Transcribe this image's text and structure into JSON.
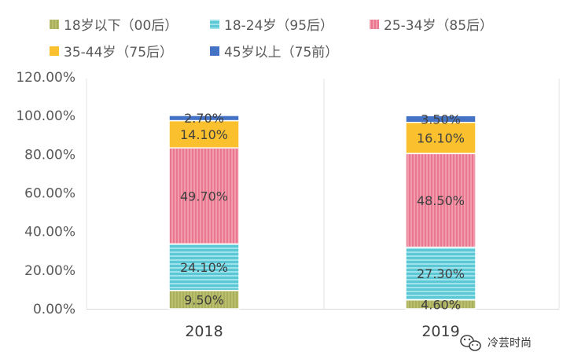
{
  "chart_data": {
    "type": "bar",
    "stacked": true,
    "title": "",
    "xlabel": "",
    "ylabel": "",
    "categories": [
      "2018",
      "2019"
    ],
    "ylim": [
      0,
      120
    ],
    "yticks": [
      0,
      20,
      40,
      60,
      80,
      100,
      120
    ],
    "ytick_labels": [
      "0.00%",
      "20.00%",
      "40.00%",
      "60.00%",
      "80.00%",
      "100.00%",
      "120.00%"
    ],
    "legend_position": "top",
    "series": [
      {
        "name": "18岁以下（00后）",
        "values": [
          9.5,
          4.6
        ],
        "labels": [
          "9.50%",
          "4.60%"
        ],
        "color": "#b5bb6a",
        "pattern": "vertical-stripes"
      },
      {
        "name": "18-24岁（95后）",
        "values": [
          24.1,
          27.3
        ],
        "labels": [
          "24.10%",
          "27.30%"
        ],
        "color": "#5cc8d6",
        "pattern": "horizontal-stripes"
      },
      {
        "name": "25-34岁（85后）",
        "values": [
          49.7,
          48.5
        ],
        "labels": [
          "49.70%",
          "48.50%"
        ],
        "color": "#ee8fa2",
        "pattern": "vertical-stripes"
      },
      {
        "name": "35-44岁（75后）",
        "values": [
          14.1,
          16.1
        ],
        "labels": [
          "14.10%",
          "16.10%"
        ],
        "color": "#fbc02d",
        "pattern": "solid"
      },
      {
        "name": "45岁以上（75前）",
        "values": [
          2.7,
          3.5
        ],
        "labels": [
          "2.70%",
          "3.50%"
        ],
        "color": "#4472c4",
        "pattern": "solid"
      }
    ]
  },
  "watermark": {
    "text": "冷芸时尚",
    "icon": "wechat-icon"
  }
}
